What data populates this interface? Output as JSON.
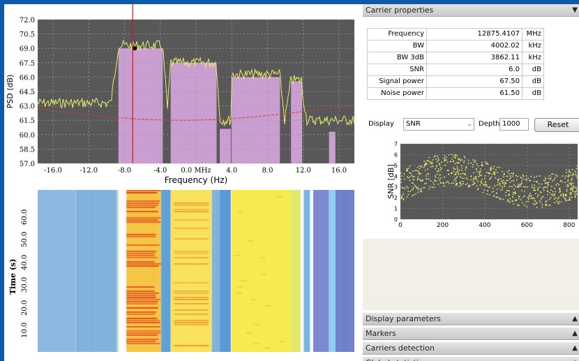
{
  "spectrum": {
    "y_ticks": [
      "72.0",
      "70.5",
      "69.0",
      "67.5",
      "66.0",
      "64.5",
      "63.0",
      "61.5",
      "60.0",
      "58.5",
      "57.0"
    ],
    "y_label": "PSD (dB)",
    "x_ticks": [
      "-16.0",
      "-12.0",
      "-8.0",
      "-4.0",
      "0.0 MHz",
      "4.0",
      "8.0",
      "12.0",
      "16.0"
    ],
    "x_label": "Frequency (Hz)",
    "colors": {
      "background": "#585858",
      "trace": "#e8ee6a",
      "noise": "#d83a3a",
      "carrier": "#d8a6e0",
      "marker": "#e01010",
      "grid": "#9a9a9a"
    }
  },
  "waterfall": {
    "y_ticks": [
      "10.0",
      "20.0",
      "30.0",
      "40.0",
      "50.0",
      "60.0"
    ],
    "y_label": "Time (s)"
  },
  "panel": {
    "carrier_properties": {
      "title": "Carrier properties",
      "rows": [
        {
          "name": "Frequency",
          "value": "12875.4107",
          "unit": "MHz"
        },
        {
          "name": "BW",
          "value": "4002.02",
          "unit": "kHz"
        },
        {
          "name": "BW 3dB",
          "value": "3862.11",
          "unit": "kHz"
        },
        {
          "name": "SNR",
          "value": "6.0",
          "unit": "dB"
        },
        {
          "name": "Signal power",
          "value": "67.50",
          "unit": "dB"
        },
        {
          "name": "Noise power",
          "value": "61.50",
          "unit": "dB"
        }
      ]
    },
    "display_label": "Display",
    "display_value": "SNR",
    "depth_label": "Depth",
    "depth_value": "1000",
    "reset_label": "Reset",
    "snr_plot": {
      "y_label": "SNR [dB]",
      "y_ticks": [
        "7",
        "6",
        "5",
        "4",
        "3",
        "2",
        "1",
        "0"
      ],
      "x_ticks": [
        "0",
        "200",
        "400",
        "600",
        "800"
      ],
      "colors": {
        "background": "#585858",
        "points": "#e8ee6a"
      }
    },
    "sections": [
      "Display parameters",
      "Markers",
      "Carriers detection",
      "Global statistics"
    ]
  }
}
